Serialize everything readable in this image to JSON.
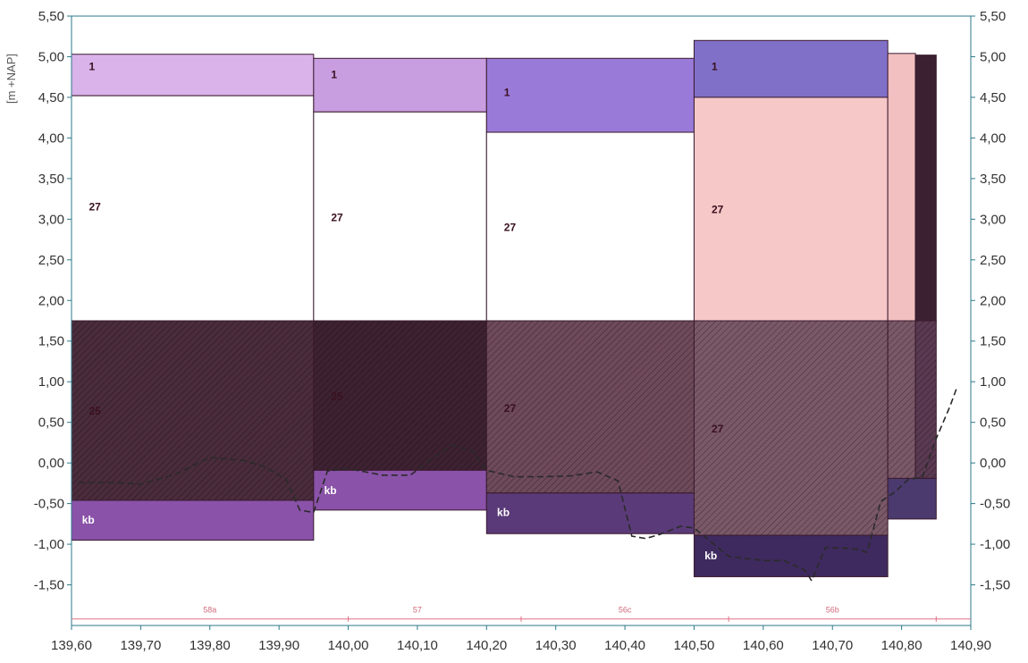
{
  "chart_data": {
    "type": "bar",
    "ylabel": "[m +NAP]",
    "xlim": [
      139.6,
      140.9
    ],
    "ylim": [
      -2.0,
      5.5
    ],
    "x_ticks": [
      139.6,
      139.7,
      139.8,
      139.9,
      140.0,
      140.1,
      140.2,
      140.3,
      140.4,
      140.5,
      140.6,
      140.7,
      140.8,
      140.9
    ],
    "x_tick_labels": [
      "139,60",
      "139,70",
      "139,80",
      "139,90",
      "140,00",
      "140,10",
      "140,20",
      "140,30",
      "140,40",
      "140,50",
      "140,60",
      "140,70",
      "140,80",
      "140,90"
    ],
    "y_ticks": [
      5.5,
      5.0,
      4.5,
      4.0,
      3.5,
      3.0,
      2.5,
      2.0,
      1.5,
      1.0,
      0.5,
      0.0,
      -0.5,
      -1.0,
      -1.5
    ],
    "y_tick_labels": [
      "5,50",
      "5,00",
      "4,50",
      "4,00",
      "3,50",
      "3,00",
      "2,50",
      "2,00",
      "1,50",
      "1,00",
      "0,50",
      "0,00",
      "-0,50",
      "-1,00",
      "-1,50"
    ],
    "grid": false,
    "layers": [
      {
        "label": "1",
        "x0": 139.6,
        "x1": 139.95,
        "bottom": 4.52,
        "top": 5.03,
        "fill": "#d9b3ea"
      },
      {
        "label": "27",
        "x0": 139.6,
        "x1": 139.95,
        "bottom": 1.75,
        "top": 4.52,
        "fill": "#ffffff"
      },
      {
        "label": "25",
        "x0": 139.6,
        "x1": 139.95,
        "bottom": -0.46,
        "top": 1.75,
        "fill": "#4a2c3c",
        "hatch": true
      },
      {
        "label": "kb",
        "x0": 139.6,
        "x1": 139.95,
        "bottom": -0.95,
        "top": -0.46,
        "fill": "#8a52a8"
      },
      {
        "label": "1",
        "x0": 139.95,
        "x1": 140.2,
        "bottom": 4.32,
        "top": 4.98,
        "fill": "#c89ee0"
      },
      {
        "label": "27",
        "x0": 139.95,
        "x1": 140.2,
        "bottom": 1.75,
        "top": 4.32,
        "fill": "#ffffff"
      },
      {
        "label": "25",
        "x0": 139.95,
        "x1": 140.2,
        "bottom": -0.09,
        "top": 1.75,
        "fill": "#3e2232",
        "hatch": true
      },
      {
        "label": "kb",
        "x0": 139.95,
        "x1": 140.2,
        "bottom": -0.58,
        "top": -0.09,
        "fill": "#8a52a8"
      },
      {
        "label": "1",
        "x0": 140.2,
        "x1": 140.5,
        "bottom": 4.07,
        "top": 4.98,
        "fill": "#9a7ad8"
      },
      {
        "label": "27",
        "x0": 140.2,
        "x1": 140.5,
        "bottom": 1.75,
        "top": 4.07,
        "fill": "#ffffff"
      },
      {
        "label": "27",
        "x0": 140.2,
        "x1": 140.5,
        "bottom": -0.37,
        "top": 1.75,
        "fill": "#6e4a5a",
        "hatch": true
      },
      {
        "label": "kb",
        "x0": 140.2,
        "x1": 140.5,
        "bottom": -0.87,
        "top": -0.37,
        "fill": "#5a3a78"
      },
      {
        "label": "1",
        "x0": 140.5,
        "x1": 140.78,
        "bottom": 4.5,
        "top": 5.2,
        "fill": "#8070c8"
      },
      {
        "label": "27",
        "x0": 140.5,
        "x1": 140.78,
        "bottom": 1.75,
        "top": 4.5,
        "fill": "#f6c8c8"
      },
      {
        "label": "27",
        "x0": 140.5,
        "x1": 140.78,
        "bottom": -0.89,
        "top": 1.75,
        "fill": "#7a5868",
        "hatch": true
      },
      {
        "label": "kb",
        "x0": 140.5,
        "x1": 140.78,
        "bottom": -1.4,
        "top": -0.89,
        "fill": "#3e2a5e"
      },
      {
        "label": "",
        "x0": 140.78,
        "x1": 140.82,
        "bottom": 1.75,
        "top": 5.04,
        "fill": "#f2c0c0"
      },
      {
        "label": "",
        "x0": 140.78,
        "x1": 140.82,
        "bottom": -0.19,
        "top": 1.75,
        "fill": "#7a5868",
        "hatch": true
      },
      {
        "label": "",
        "x0": 140.82,
        "x1": 140.85,
        "bottom": 1.75,
        "top": 5.02,
        "fill": "#3a2030"
      },
      {
        "label": "",
        "x0": 140.82,
        "x1": 140.85,
        "bottom": -0.19,
        "top": 1.75,
        "fill": "#5a3a52",
        "hatch": true
      },
      {
        "label": "",
        "x0": 140.78,
        "x1": 140.85,
        "bottom": -0.69,
        "top": -0.19,
        "fill": "#4a3a6e"
      }
    ],
    "layer_label_positions": [
      {
        "label": "1",
        "x": 139.62,
        "y": 4.88
      },
      {
        "label": "27",
        "x": 139.62,
        "y": 3.15
      },
      {
        "label": "25",
        "x": 139.62,
        "y": 0.64
      },
      {
        "label": "kb",
        "x": 139.61,
        "y": -0.7
      },
      {
        "label": "1",
        "x": 139.97,
        "y": 4.78
      },
      {
        "label": "27",
        "x": 139.97,
        "y": 3.02
      },
      {
        "label": "25",
        "x": 139.97,
        "y": 0.82
      },
      {
        "label": "kb",
        "x": 139.96,
        "y": -0.34
      },
      {
        "label": "1",
        "x": 140.22,
        "y": 4.56
      },
      {
        "label": "27",
        "x": 140.22,
        "y": 2.9
      },
      {
        "label": "27",
        "x": 140.22,
        "y": 0.67
      },
      {
        "label": "kb",
        "x": 140.21,
        "y": -0.61
      },
      {
        "label": "1",
        "x": 140.52,
        "y": 4.88
      },
      {
        "label": "27",
        "x": 140.52,
        "y": 3.12
      },
      {
        "label": "27",
        "x": 140.52,
        "y": 0.42
      },
      {
        "label": "kb",
        "x": 140.51,
        "y": -1.14
      }
    ],
    "section_labels": [
      {
        "label": "58a",
        "x": 139.8
      },
      {
        "label": "57",
        "x": 140.1
      },
      {
        "label": "56c",
        "x": 140.4
      },
      {
        "label": "56b",
        "x": 140.7
      }
    ],
    "section_baseline_y": -1.92,
    "section_tick_x": [
      140.0,
      140.25,
      140.55,
      140.85
    ],
    "groundwater_line": {
      "x": [
        139.61,
        139.66,
        139.7,
        139.75,
        139.8,
        139.85,
        139.88,
        139.91,
        139.93,
        139.95,
        139.97,
        140.0,
        140.05,
        140.09,
        140.12,
        140.15,
        140.18,
        140.2,
        140.24,
        140.28,
        140.32,
        140.36,
        140.39,
        140.41,
        140.43,
        140.45,
        140.48,
        140.5,
        140.55,
        140.6,
        140.63,
        140.66,
        140.67,
        140.69,
        140.72,
        140.74,
        140.75,
        140.77,
        140.79,
        140.81,
        140.83,
        140.85,
        140.87,
        140.88
      ],
      "y": [
        -0.24,
        -0.24,
        -0.26,
        -0.14,
        0.07,
        0.03,
        -0.05,
        -0.2,
        -0.58,
        -0.61,
        -0.1,
        -0.07,
        -0.15,
        -0.15,
        0.05,
        0.22,
        0.15,
        -0.09,
        -0.17,
        -0.17,
        -0.16,
        -0.11,
        -0.22,
        -0.9,
        -0.93,
        -0.88,
        -0.78,
        -0.8,
        -1.15,
        -1.2,
        -1.2,
        -1.32,
        -1.45,
        -1.04,
        -1.05,
        -1.07,
        -1.1,
        -0.47,
        -0.36,
        -0.2,
        -0.18,
        0.3,
        0.7,
        0.93
      ]
    },
    "colors": {
      "axis": "#2b7a8a",
      "tick_text": "#333333",
      "layer_border": "#3a1a2e",
      "hatch_line": "#000000",
      "section_line": "#e07088",
      "groundwater": "#2a2a2a"
    }
  }
}
